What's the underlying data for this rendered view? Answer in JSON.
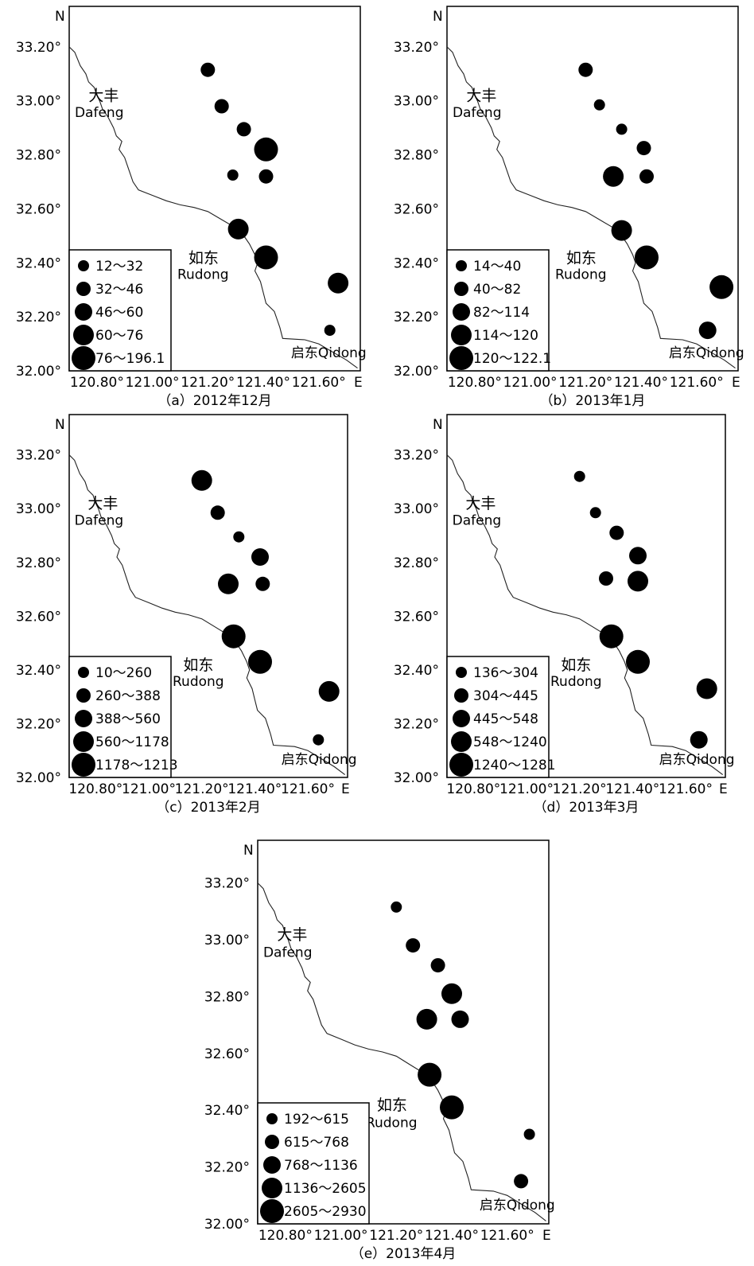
{
  "figure": {
    "y_ticks": [
      "33.20°",
      "33.00°",
      "32.80°",
      "32.60°",
      "32.40°",
      "32.20°",
      "32.00°"
    ],
    "x_ticks": [
      "120.80°",
      "121.00°",
      "121.20°",
      "121.40°",
      "121.60°"
    ],
    "north_label": "N",
    "east_label": "E",
    "places": {
      "dafeng_cn": "大丰",
      "dafeng_en": "Dafeng",
      "rudong_cn": "如东",
      "rudong_en": "Rudong",
      "qidong": "启东Qidong"
    },
    "dot_color": "#000000"
  },
  "panels": [
    {
      "caption": "（a）2012年12月",
      "legend": [
        "12～32",
        "32～46",
        "46～60",
        "60～76",
        "76～196.1"
      ],
      "stations": [
        {
          "lon": 121.2,
          "lat": 33.115,
          "cls": 2
        },
        {
          "lon": 121.25,
          "lat": 32.98,
          "cls": 2
        },
        {
          "lon": 121.33,
          "lat": 32.895,
          "cls": 2
        },
        {
          "lon": 121.41,
          "lat": 32.82,
          "cls": 5
        },
        {
          "lon": 121.29,
          "lat": 32.725,
          "cls": 1
        },
        {
          "lon": 121.41,
          "lat": 32.72,
          "cls": 2
        },
        {
          "lon": 121.31,
          "lat": 32.525,
          "cls": 4
        },
        {
          "lon": 121.41,
          "lat": 32.42,
          "cls": 5
        },
        {
          "lon": 121.67,
          "lat": 32.325,
          "cls": 4
        },
        {
          "lon": 121.64,
          "lat": 32.15,
          "cls": 1
        }
      ]
    },
    {
      "caption": "（b）2013年1月",
      "legend": [
        "14～40",
        "40～82",
        "82～114",
        "114～120",
        "120～122.1"
      ],
      "stations": [
        {
          "lon": 121.2,
          "lat": 33.115,
          "cls": 2
        },
        {
          "lon": 121.25,
          "lat": 32.985,
          "cls": 1
        },
        {
          "lon": 121.33,
          "lat": 32.895,
          "cls": 1
        },
        {
          "lon": 121.41,
          "lat": 32.825,
          "cls": 2
        },
        {
          "lon": 121.3,
          "lat": 32.72,
          "cls": 4
        },
        {
          "lon": 121.42,
          "lat": 32.72,
          "cls": 2
        },
        {
          "lon": 121.33,
          "lat": 32.52,
          "cls": 4
        },
        {
          "lon": 121.42,
          "lat": 32.42,
          "cls": 5
        },
        {
          "lon": 121.69,
          "lat": 32.31,
          "cls": 5
        },
        {
          "lon": 121.64,
          "lat": 32.15,
          "cls": 3
        }
      ]
    },
    {
      "caption": "（c）2013年2月",
      "legend": [
        "10～260",
        "260～388",
        "388～560",
        "560～1178",
        "1178～1213"
      ],
      "stations": [
        {
          "lon": 121.2,
          "lat": 33.105,
          "cls": 4
        },
        {
          "lon": 121.26,
          "lat": 32.985,
          "cls": 2
        },
        {
          "lon": 121.34,
          "lat": 32.895,
          "cls": 1
        },
        {
          "lon": 121.42,
          "lat": 32.82,
          "cls": 3
        },
        {
          "lon": 121.3,
          "lat": 32.72,
          "cls": 4
        },
        {
          "lon": 121.43,
          "lat": 32.72,
          "cls": 2
        },
        {
          "lon": 121.32,
          "lat": 32.525,
          "cls": 5
        },
        {
          "lon": 121.42,
          "lat": 32.43,
          "cls": 5
        },
        {
          "lon": 121.68,
          "lat": 32.32,
          "cls": 4
        },
        {
          "lon": 121.64,
          "lat": 32.14,
          "cls": 1
        }
      ]
    },
    {
      "caption": "（d）2013年3月",
      "legend": [
        "136～304",
        "304～445",
        "445～548",
        "548～1240",
        "1240～1281"
      ],
      "stations": [
        {
          "lon": 121.2,
          "lat": 33.12,
          "cls": 1
        },
        {
          "lon": 121.26,
          "lat": 32.985,
          "cls": 1
        },
        {
          "lon": 121.34,
          "lat": 32.91,
          "cls": 2
        },
        {
          "lon": 121.42,
          "lat": 32.825,
          "cls": 3
        },
        {
          "lon": 121.3,
          "lat": 32.74,
          "cls": 2
        },
        {
          "lon": 121.42,
          "lat": 32.73,
          "cls": 4
        },
        {
          "lon": 121.32,
          "lat": 32.525,
          "cls": 5
        },
        {
          "lon": 121.42,
          "lat": 32.43,
          "cls": 5
        },
        {
          "lon": 121.68,
          "lat": 32.33,
          "cls": 4
        },
        {
          "lon": 121.65,
          "lat": 32.14,
          "cls": 3
        }
      ]
    },
    {
      "caption": "（e）2013年4月",
      "legend": [
        "192～615",
        "615～768",
        "768～1136",
        "1136～2605",
        "2605～2930"
      ],
      "stations": [
        {
          "lon": 121.2,
          "lat": 33.115,
          "cls": 1
        },
        {
          "lon": 121.26,
          "lat": 32.98,
          "cls": 2
        },
        {
          "lon": 121.35,
          "lat": 32.91,
          "cls": 2
        },
        {
          "lon": 121.4,
          "lat": 32.81,
          "cls": 4
        },
        {
          "lon": 121.31,
          "lat": 32.72,
          "cls": 4
        },
        {
          "lon": 121.43,
          "lat": 32.72,
          "cls": 3
        },
        {
          "lon": 121.32,
          "lat": 32.525,
          "cls": 5
        },
        {
          "lon": 121.4,
          "lat": 32.41,
          "cls": 5
        },
        {
          "lon": 121.68,
          "lat": 32.315,
          "cls": 1
        },
        {
          "lon": 121.65,
          "lat": 32.15,
          "cls": 2
        }
      ]
    }
  ]
}
